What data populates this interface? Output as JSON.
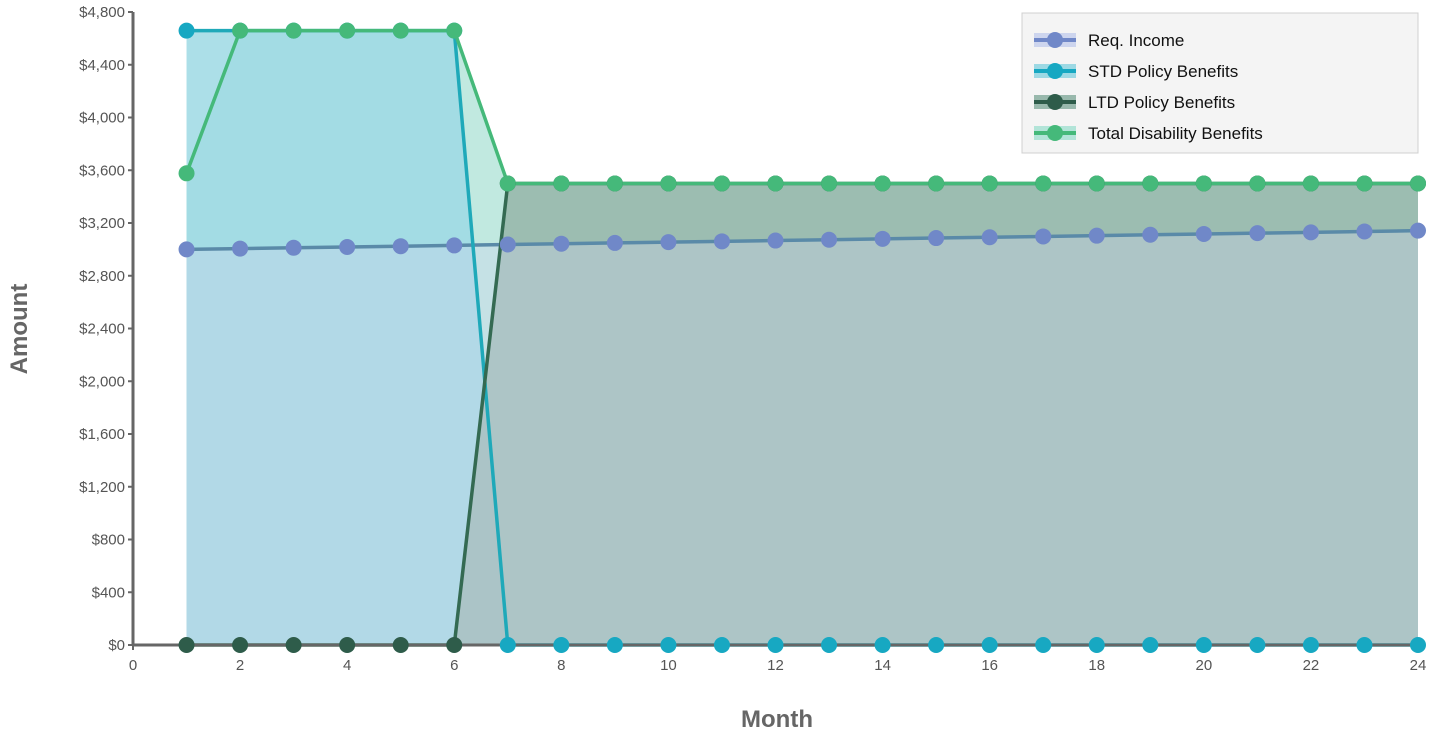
{
  "chart_data": {
    "type": "area",
    "xlabel": "Month",
    "ylabel": "Amount",
    "xlim": [
      0,
      24
    ],
    "ylim": [
      0,
      4800
    ],
    "x_ticks": [
      "0",
      "2",
      "4",
      "6",
      "8",
      "10",
      "12",
      "14",
      "16",
      "18",
      "20",
      "22",
      "24"
    ],
    "y_ticks": [
      "$0",
      "$400",
      "$800",
      "$1,200",
      "$1,600",
      "$2,000",
      "$2,400",
      "$2,800",
      "$3,200",
      "$3,600",
      "$4,000",
      "$4,400",
      "$4,800"
    ],
    "x": [
      1,
      2,
      3,
      4,
      5,
      6,
      7,
      8,
      9,
      10,
      11,
      12,
      13,
      14,
      15,
      16,
      17,
      18,
      19,
      20,
      21,
      22,
      23,
      24
    ],
    "grid": false,
    "legend_position": "top-right",
    "series": [
      {
        "name": "Req. Income",
        "color": "#7088c8",
        "line_color": "#5a8aa8",
        "fill": "#cdd5ee",
        "values": [
          3000,
          3006,
          3012,
          3018,
          3024,
          3030,
          3037,
          3043,
          3049,
          3055,
          3061,
          3067,
          3073,
          3080,
          3086,
          3092,
          3098,
          3104,
          3111,
          3117,
          3123,
          3129,
          3136,
          3142
        ]
      },
      {
        "name": "STD Policy Benefits",
        "color": "#17a8c2",
        "line_color": "#1fa9b9",
        "fill": "#9dd9e4",
        "values": [
          4659,
          4659,
          4659,
          4659,
          4659,
          4659,
          0,
          0,
          0,
          0,
          0,
          0,
          0,
          0,
          0,
          0,
          0,
          0,
          0,
          0,
          0,
          0,
          0,
          0
        ]
      },
      {
        "name": "LTD Policy Benefits",
        "color": "#2e5c4a",
        "line_color": "#346a52",
        "fill": "#98b8ac",
        "values": [
          0,
          0,
          0,
          0,
          0,
          0,
          3500,
          3500,
          3500,
          3500,
          3500,
          3500,
          3500,
          3500,
          3500,
          3500,
          3500,
          3500,
          3500,
          3500,
          3500,
          3500,
          3500,
          3500
        ]
      },
      {
        "name": "Total Disability Benefits",
        "color": "#45b97a",
        "line_color": "#45b97a",
        "fill": "#b2e4d8",
        "values": [
          3577,
          4659,
          4659,
          4659,
          4659,
          4659,
          3500,
          3500,
          3500,
          3500,
          3500,
          3500,
          3500,
          3500,
          3500,
          3500,
          3500,
          3500,
          3500,
          3500,
          3500,
          3500,
          3500,
          3500
        ]
      }
    ]
  }
}
